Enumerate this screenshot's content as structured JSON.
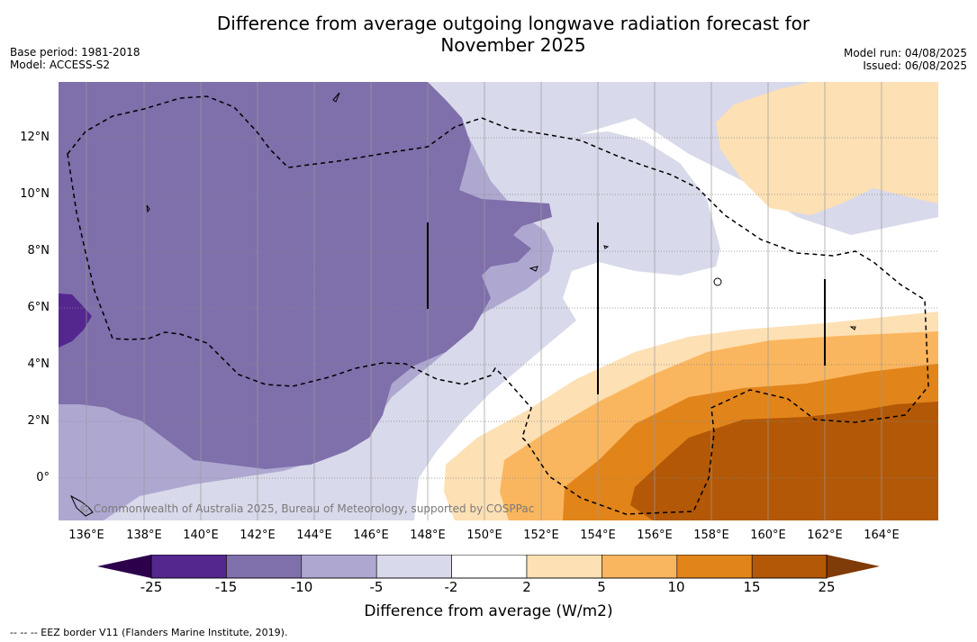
{
  "title_line1": "Difference from average outgoing longwave radiation forecast for",
  "title_line2": "November 2025",
  "base_period": "Base period: 1981-2018",
  "model": "Model: ACCESS-S2",
  "model_run": "Model run: 04/08/2025",
  "issued": "Issued: 06/08/2025",
  "lat_labels": [
    "12°N",
    "10°N",
    "8°N",
    "6°N",
    "4°N",
    "2°N",
    "0°"
  ],
  "lon_labels": [
    "136°E",
    "138°E",
    "140°E",
    "142°E",
    "144°E",
    "146°E",
    "148°E",
    "150°E",
    "152°E",
    "154°E",
    "156°E",
    "158°E",
    "160°E",
    "162°E",
    "164°E"
  ],
  "credit": "© Commonwealth of Australia 2025, Bureau of Meteorology, supported by COSPPac",
  "colorbar": {
    "ticks": [
      "-25",
      "-15",
      "-10",
      "-5",
      "-2",
      "2",
      "5",
      "10",
      "15",
      "25"
    ],
    "colors": [
      "#54278f",
      "#7f6fab",
      "#aea8d1",
      "#d8d9ea",
      "#ffffff",
      "#fde0b4",
      "#fab65e",
      "#e1841a",
      "#b35806"
    ],
    "under_color": "#2d004b",
    "over_color": "#7f3b08",
    "label": "Difference from average (W/m2)"
  },
  "footnote": "--  --  -- EEZ border V11 (Flanders Marine Institute, 2019)."
}
